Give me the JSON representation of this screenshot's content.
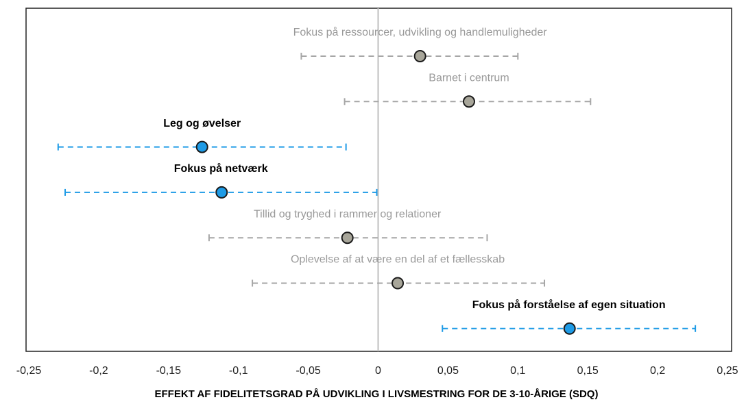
{
  "chart_data": {
    "type": "errorbar",
    "x_label": "EFFEKT AF FIDELITETSGRAD PÅ UDVIKLING I LIVSMESTRING FOR DE 3-10-ÅRIGE (SDQ)",
    "xlim": [
      -0.25,
      0.25
    ],
    "xticks": [
      {
        "value": -0.25,
        "label": "-0,25"
      },
      {
        "value": -0.2,
        "label": "-0,2"
      },
      {
        "value": -0.15,
        "label": "-0,15"
      },
      {
        "value": -0.1,
        "label": "-0,1"
      },
      {
        "value": -0.05,
        "label": "-0,05"
      },
      {
        "value": 0,
        "label": "0"
      },
      {
        "value": 0.05,
        "label": "0,05"
      },
      {
        "value": 0.1,
        "label": "0,1"
      },
      {
        "value": 0.15,
        "label": "0,15"
      },
      {
        "value": 0.2,
        "label": "0,2"
      },
      {
        "value": 0.25,
        "label": "0,25"
      }
    ],
    "items": [
      {
        "label": "Fokus på ressourcer, udvikling og handlemuligheder",
        "value": 0.03,
        "low": -0.055,
        "high": 0.1,
        "color": "#a6a6a6",
        "bold": false
      },
      {
        "label": "Barnet i centrum",
        "value": 0.065,
        "low": -0.024,
        "high": 0.152,
        "color": "#a6a6a6",
        "bold": false
      },
      {
        "label": "Leg og øvelser",
        "value": -0.126,
        "low": -0.229,
        "high": -0.023,
        "color": "#1e9be6",
        "bold": true
      },
      {
        "label": "Fokus på netværk",
        "value": -0.112,
        "low": -0.224,
        "high": -0.001,
        "color": "#1e9be6",
        "bold": true
      },
      {
        "label": "Tillid og tryghed i rammer og relationer",
        "value": -0.022,
        "low": -0.121,
        "high": 0.078,
        "color": "#a6a6a6",
        "bold": false
      },
      {
        "label": "Oplevelse af at være en del af et fællesskab",
        "value": 0.014,
        "low": -0.09,
        "high": 0.119,
        "color": "#a6a6a6",
        "bold": false
      },
      {
        "label": "Fokus på forståelse af egen situation",
        "value": 0.137,
        "low": 0.046,
        "high": 0.227,
        "color": "#1e9be6",
        "bold": true
      }
    ]
  }
}
